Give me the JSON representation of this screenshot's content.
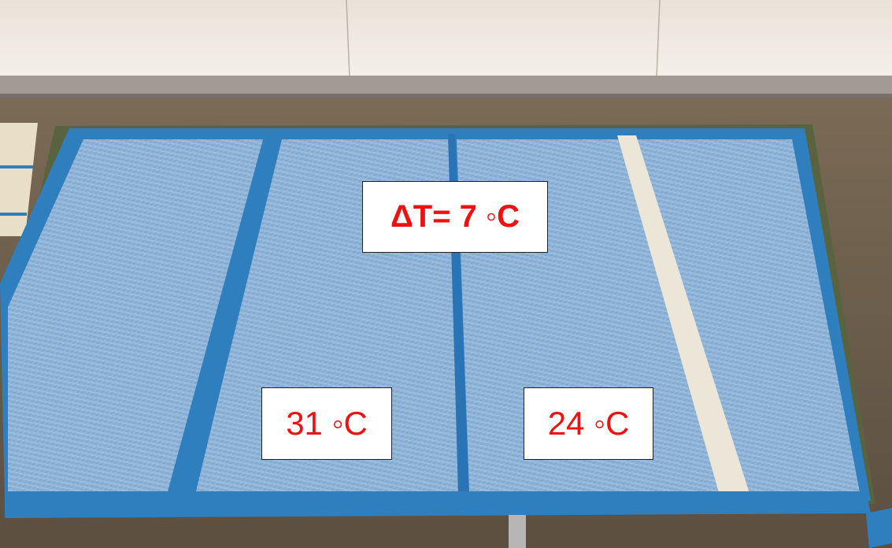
{
  "labels": {
    "delta": "ΔT= 7 ◦C",
    "left_temperature": "31 ◦C",
    "right_temperature": "24 ◦C"
  },
  "colors": {
    "label_text": "#ee1111",
    "label_background": "#ffffff",
    "label_border": "#222222",
    "tape": "#2f7fbf",
    "panel": "#8fb4d8",
    "floor": "#6a5a48",
    "wall": "#f2ede6",
    "baseboard": "#9b968f",
    "white_strip": "#ece6d8"
  }
}
